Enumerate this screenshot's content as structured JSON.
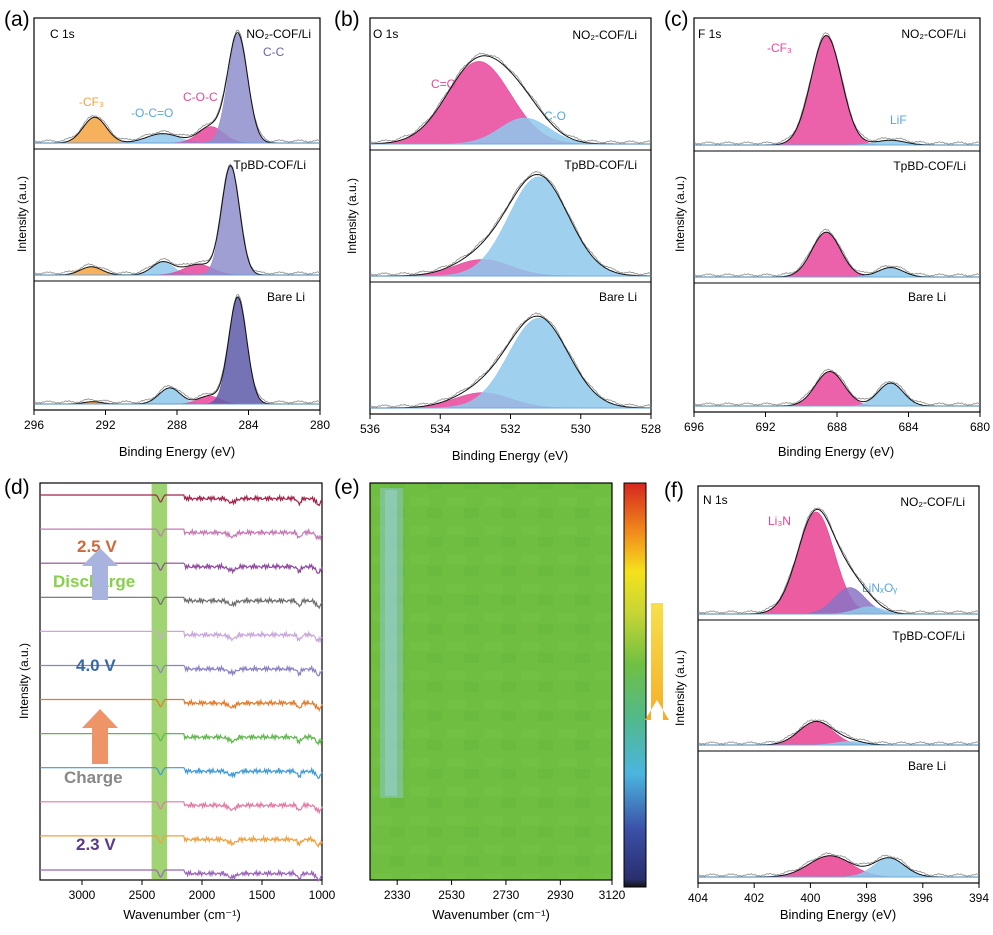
{
  "panels_label": [
    "(a)",
    "(b)",
    "(c)",
    "(d)",
    "(e)",
    "(f)"
  ],
  "samples": [
    "NO₂-COF/Li",
    "TpBD-COF/Li",
    "Bare Li"
  ],
  "colors": {
    "cf3_orange": "#f5a340",
    "ester_blue": "#8ec9ec",
    "coc_pink": "#e8479c",
    "cc_purple": "#8e8ecd",
    "cc_purple_dark": "#5d5aa8",
    "li3n_pink": "#e8408f",
    "linxoy_purple": "#8a73c4",
    "green_bar": "#8fcc5a",
    "map_green": "#6fc043"
  },
  "xps_a": {
    "panel": "(a)",
    "element": "C 1s",
    "xlabel": "Binding Energy (eV)",
    "ylabel": "Intensity (a.u.)",
    "xlim": [
      296,
      280
    ],
    "ticks": [
      296,
      292,
      288,
      284,
      280
    ],
    "peak_labels": [
      "-CF₃",
      "-O-C=O",
      "C-O-C",
      "C-C"
    ],
    "rows": [
      {
        "sample": "NO₂-COF/Li",
        "peaks": [
          {
            "center": 292.6,
            "height": 0.22,
            "width": 0.65,
            "color": "#f5a340"
          },
          {
            "center": 288.8,
            "height": 0.08,
            "width": 0.9,
            "color": "#8ec9ec"
          },
          {
            "center": 286.1,
            "height": 0.14,
            "width": 0.7,
            "color": "#e8479c"
          },
          {
            "center": 284.6,
            "height": 0.93,
            "width": 0.55,
            "color": "#8e8ecd"
          }
        ]
      },
      {
        "sample": "TpBD-COF/Li",
        "peaks": [
          {
            "center": 292.8,
            "height": 0.07,
            "width": 0.6,
            "color": "#f5a340"
          },
          {
            "center": 288.8,
            "height": 0.11,
            "width": 0.6,
            "color": "#8ec9ec"
          },
          {
            "center": 286.8,
            "height": 0.09,
            "width": 0.8,
            "color": "#e8479c"
          },
          {
            "center": 285.0,
            "height": 0.92,
            "width": 0.5,
            "color": "#8e8ecd"
          }
        ]
      },
      {
        "sample": "Bare Li",
        "peaks": [
          {
            "center": 292.7,
            "height": 0.02,
            "width": 0.5,
            "color": "#f5a340"
          },
          {
            "center": 288.4,
            "height": 0.14,
            "width": 0.6,
            "color": "#8ec9ec"
          },
          {
            "center": 286.2,
            "height": 0.07,
            "width": 0.6,
            "color": "#e8479c"
          },
          {
            "center": 284.6,
            "height": 0.93,
            "width": 0.5,
            "color": "#5d5aa8"
          }
        ]
      }
    ]
  },
  "xps_b": {
    "panel": "(b)",
    "element": "O 1s",
    "xlabel": "Binding Energy (eV)",
    "ylabel": "Intensity (a.u.)",
    "xlim": [
      536,
      528
    ],
    "ticks": [
      536,
      534,
      532,
      530,
      528
    ],
    "peak_labels": [
      "C=O",
      "C-O"
    ],
    "rows": [
      {
        "sample": "NO₂-COF/Li",
        "peaks": [
          {
            "center": 532.9,
            "height": 0.7,
            "width": 0.9,
            "color": "#e8479c"
          },
          {
            "center": 531.6,
            "height": 0.22,
            "width": 0.7,
            "color": "#8ec9ec"
          }
        ]
      },
      {
        "sample": "TpBD-COF/Li",
        "peaks": [
          {
            "center": 532.8,
            "height": 0.14,
            "width": 0.8,
            "color": "#e8479c"
          },
          {
            "center": 531.2,
            "height": 0.84,
            "width": 0.85,
            "color": "#8ec9ec"
          }
        ]
      },
      {
        "sample": "Bare Li",
        "peaks": [
          {
            "center": 532.8,
            "height": 0.13,
            "width": 0.8,
            "color": "#e8479c"
          },
          {
            "center": 531.2,
            "height": 0.76,
            "width": 0.85,
            "color": "#8ec9ec"
          }
        ]
      }
    ]
  },
  "xps_c": {
    "panel": "(c)",
    "element": "F 1s",
    "xlabel": "Binding Energy (eV)",
    "ylabel": "Intensity (a.u.)",
    "xlim": [
      696,
      680
    ],
    "ticks": [
      696,
      692,
      688,
      684,
      680
    ],
    "peak_labels": [
      "-CF₃",
      "LiF"
    ],
    "rows": [
      {
        "sample": "NO₂-COF/Li",
        "peaks": [
          {
            "center": 688.6,
            "height": 0.92,
            "width": 0.85,
            "color": "#e8479c"
          },
          {
            "center": 685.0,
            "height": 0.04,
            "width": 0.8,
            "color": "#8ec9ec"
          }
        ]
      },
      {
        "sample": "TpBD-COF/Li",
        "peaks": [
          {
            "center": 688.6,
            "height": 0.38,
            "width": 0.8,
            "color": "#e8479c"
          },
          {
            "center": 685.0,
            "height": 0.08,
            "width": 0.7,
            "color": "#8ec9ec"
          }
        ]
      },
      {
        "sample": "Bare Li",
        "peaks": [
          {
            "center": 688.4,
            "height": 0.3,
            "width": 0.8,
            "color": "#e8479c"
          },
          {
            "center": 685.0,
            "height": 0.2,
            "width": 0.7,
            "color": "#8ec9ec"
          }
        ]
      }
    ]
  },
  "xps_f": {
    "panel": "(f)",
    "element": "N 1s",
    "xlabel": "Binding Energy (eV)",
    "ylabel": "Intensity (a.u.)",
    "xlim": [
      404,
      394
    ],
    "ticks": [
      404,
      402,
      400,
      398,
      396,
      394
    ],
    "peak_labels": [
      "Li₃N",
      "LiNₓOᵧ"
    ],
    "rows": [
      {
        "sample": "NO₂-COF/Li",
        "peaks": [
          {
            "center": 399.8,
            "height": 0.85,
            "width": 0.65,
            "color": "#e8408f"
          },
          {
            "center": 398.6,
            "height": 0.22,
            "width": 0.55,
            "color": "#8a73c4"
          },
          {
            "center": 397.9,
            "height": 0.06,
            "width": 0.5,
            "color": "#8ec9ec"
          }
        ]
      },
      {
        "sample": "TpBD-COF/Li",
        "peaks": [
          {
            "center": 399.8,
            "height": 0.2,
            "width": 0.6,
            "color": "#e8408f"
          },
          {
            "center": 398.6,
            "height": 0.03,
            "width": 0.5,
            "color": "#8ec9ec"
          }
        ]
      },
      {
        "sample": "Bare Li",
        "peaks": [
          {
            "center": 399.3,
            "height": 0.18,
            "width": 0.75,
            "color": "#e8408f"
          },
          {
            "center": 397.2,
            "height": 0.16,
            "width": 0.55,
            "color": "#8ec9ec"
          }
        ]
      }
    ]
  },
  "ftir_d": {
    "panel": "(d)",
    "xlabel": "Wavenumber (cm⁻¹)",
    "ylabel": "Intensity (a.u.)",
    "xlim": [
      3350,
      1000
    ],
    "ticks": [
      3000,
      2500,
      2000,
      1500,
      1000
    ],
    "highlight_band": [
      2420,
      2290
    ],
    "labels": [
      "2.5 V",
      "Discharge",
      "4.0 V",
      "Charge",
      "2.3 V"
    ],
    "label_colors": [
      "#d0693a",
      "#86d04a",
      "#3a67a8",
      "#888888",
      "#5a3a8a"
    ],
    "series_colors": [
      "#a3234a",
      "#c678b4",
      "#8e4a9e",
      "#6e6e6e",
      "#c9a6dc",
      "#8a82c4",
      "#e07b2a",
      "#5fb84b",
      "#3f9ad6",
      "#e27aa6",
      "#f0a03e",
      "#9b63bb"
    ]
  },
  "map_e": {
    "panel": "(e)",
    "xlabel": "Wavenumber (cm⁻¹)",
    "xlim": [
      2230,
      3120
    ],
    "ticks": [
      2330,
      2530,
      2730,
      2930,
      3120
    ]
  }
}
